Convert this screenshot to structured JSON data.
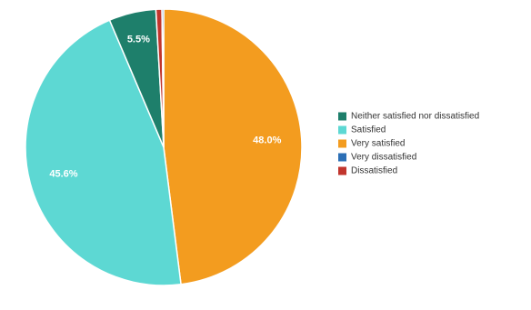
{
  "chart_data": {
    "type": "pie",
    "title": "",
    "start_angle_deg": 0,
    "direction": "clockwise",
    "slices": [
      {
        "label": "Very satisfied",
        "value": 48.0,
        "color": "#F39C1F",
        "display": "48.0%"
      },
      {
        "label": "Satisfied",
        "value": 45.6,
        "color": "#5DD8D3",
        "display": "45.6%"
      },
      {
        "label": "Neither satisfied nor dissatisfied",
        "value": 5.5,
        "color": "#1E7F6B",
        "display": "5.5%"
      },
      {
        "label": "Dissatisfied",
        "value": 0.7,
        "color": "#C1352D",
        "display": ""
      },
      {
        "label": "Very dissatisfied",
        "value": 0.2,
        "color": "#2C6FB6",
        "display": ""
      }
    ],
    "legend": {
      "position": "right",
      "order": [
        "Neither satisfied nor dissatisfied",
        "Satisfied",
        "Very satisfied",
        "Very dissatisfied",
        "Dissatisfied"
      ]
    }
  }
}
